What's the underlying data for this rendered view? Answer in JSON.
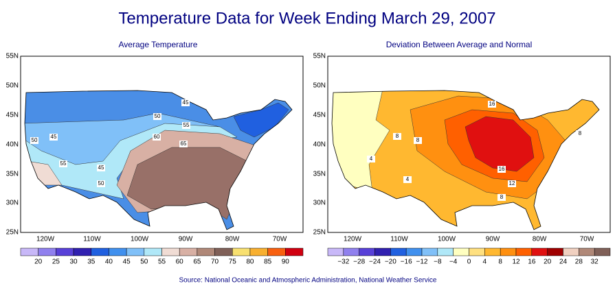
{
  "header": {
    "title": "Temperature Data for Week Ending March 29, 2007"
  },
  "panels": [
    {
      "title": "Average Temperature",
      "contour_labels": [
        "45",
        "50",
        "55",
        "60",
        "65",
        "50",
        "45",
        "55",
        "45",
        "50"
      ],
      "colorbar": {
        "labels": [
          "20",
          "25",
          "30",
          "35",
          "40",
          "45",
          "50",
          "55",
          "60",
          "65",
          "70",
          "75",
          "80",
          "85",
          "90"
        ],
        "colors": [
          "#c8b8f8",
          "#9080ee",
          "#5840d8",
          "#3020b0",
          "#2060e0",
          "#4090ee",
          "#80c0f8",
          "#b0e8f8",
          "#f0dcd4",
          "#d8b0a4",
          "#b08878",
          "#806058",
          "#f8e070",
          "#f8b030",
          "#f86010",
          "#d00010"
        ]
      }
    },
    {
      "title": "Deviation Between Average and Normal",
      "contour_labels": [
        "16",
        "8",
        "8",
        "4",
        "16",
        "12",
        "8",
        "4",
        "8"
      ],
      "colorbar": {
        "labels": [
          "−32",
          "−28",
          "−24",
          "−20",
          "−16",
          "−12",
          "−8",
          "−4",
          "0",
          "4",
          "8",
          "12",
          "16",
          "20",
          "24",
          "28",
          "32"
        ],
        "colors": [
          "#c8b8f8",
          "#9080ee",
          "#5840d8",
          "#3020b0",
          "#2060e0",
          "#4090ee",
          "#80c0f8",
          "#b0e8f8",
          "#ffffc0",
          "#ffe080",
          "#ffb830",
          "#ff9010",
          "#ff6000",
          "#e01010",
          "#a00000",
          "#f0d0c0",
          "#b08878",
          "#806058"
        ]
      }
    }
  ],
  "lat_labels": [
    "55N",
    "50N",
    "45N",
    "40N",
    "35N",
    "30N",
    "25N"
  ],
  "lon_labels": [
    "120W",
    "110W",
    "100W",
    "90W",
    "80W",
    "70W"
  ],
  "source": "Source:  National Oceanic and Atmospheric Administration, National Weather Service"
}
